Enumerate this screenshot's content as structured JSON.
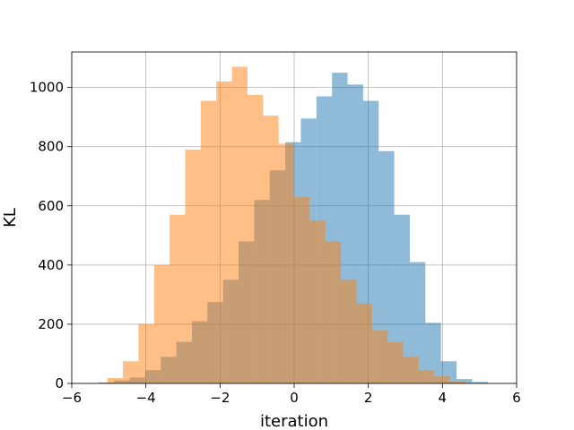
{
  "chart_data": {
    "type": "bar",
    "title": "",
    "xlabel": "iteration",
    "ylabel": "KL",
    "xlim": [
      -6,
      6
    ],
    "ylim": [
      0,
      1120
    ],
    "xticks": [
      -6,
      -4,
      -2,
      0,
      2,
      4,
      6
    ],
    "xtick_labels": [
      "−6",
      "−4",
      "−2",
      "0",
      "2",
      "4",
      "6"
    ],
    "yticks": [
      0,
      200,
      400,
      600,
      800,
      1000
    ],
    "ytick_labels": [
      "0",
      "200",
      "400",
      "600",
      "800",
      "1000"
    ],
    "grid": true,
    "legend": false,
    "series": [
      {
        "color": "#1f77b4",
        "alpha": 0.5,
        "bin_width": 0.42,
        "bins": [
          {
            "x0": -5.28,
            "value": 3
          },
          {
            "x0": -4.86,
            "value": 10
          },
          {
            "x0": -4.44,
            "value": 20
          },
          {
            "x0": -4.02,
            "value": 45
          },
          {
            "x0": -3.6,
            "value": 90
          },
          {
            "x0": -3.18,
            "value": 140
          },
          {
            "x0": -2.76,
            "value": 210
          },
          {
            "x0": -2.34,
            "value": 275
          },
          {
            "x0": -1.92,
            "value": 350
          },
          {
            "x0": -1.5,
            "value": 480
          },
          {
            "x0": -1.08,
            "value": 620
          },
          {
            "x0": -0.66,
            "value": 720
          },
          {
            "x0": -0.24,
            "value": 815
          },
          {
            "x0": 0.18,
            "value": 895
          },
          {
            "x0": 0.6,
            "value": 970
          },
          {
            "x0": 1.02,
            "value": 1050
          },
          {
            "x0": 1.44,
            "value": 1010
          },
          {
            "x0": 1.86,
            "value": 955
          },
          {
            "x0": 2.28,
            "value": 785
          },
          {
            "x0": 2.7,
            "value": 570
          },
          {
            "x0": 3.12,
            "value": 410
          },
          {
            "x0": 3.54,
            "value": 205
          },
          {
            "x0": 3.96,
            "value": 75
          },
          {
            "x0": 4.38,
            "value": 15
          },
          {
            "x0": 4.8,
            "value": 5
          }
        ]
      },
      {
        "color": "#ff7f0e",
        "alpha": 0.5,
        "bin_width": 0.42,
        "bins": [
          {
            "x0": -5.04,
            "value": 18
          },
          {
            "x0": -4.62,
            "value": 75
          },
          {
            "x0": -4.2,
            "value": 200
          },
          {
            "x0": -3.78,
            "value": 400
          },
          {
            "x0": -3.36,
            "value": 570
          },
          {
            "x0": -2.94,
            "value": 790
          },
          {
            "x0": -2.52,
            "value": 955
          },
          {
            "x0": -2.1,
            "value": 1020
          },
          {
            "x0": -1.68,
            "value": 1070
          },
          {
            "x0": -1.26,
            "value": 975
          },
          {
            "x0": -0.84,
            "value": 905
          },
          {
            "x0": -0.42,
            "value": 810
          },
          {
            "x0": 0.0,
            "value": 630
          },
          {
            "x0": 0.42,
            "value": 550
          },
          {
            "x0": 0.84,
            "value": 480
          },
          {
            "x0": 1.26,
            "value": 350
          },
          {
            "x0": 1.68,
            "value": 270
          },
          {
            "x0": 2.1,
            "value": 180
          },
          {
            "x0": 2.52,
            "value": 140
          },
          {
            "x0": 2.94,
            "value": 90
          },
          {
            "x0": 3.36,
            "value": 45
          },
          {
            "x0": 3.78,
            "value": 25
          },
          {
            "x0": 4.2,
            "value": 7
          },
          {
            "x0": 4.62,
            "value": 2
          }
        ]
      }
    ]
  }
}
